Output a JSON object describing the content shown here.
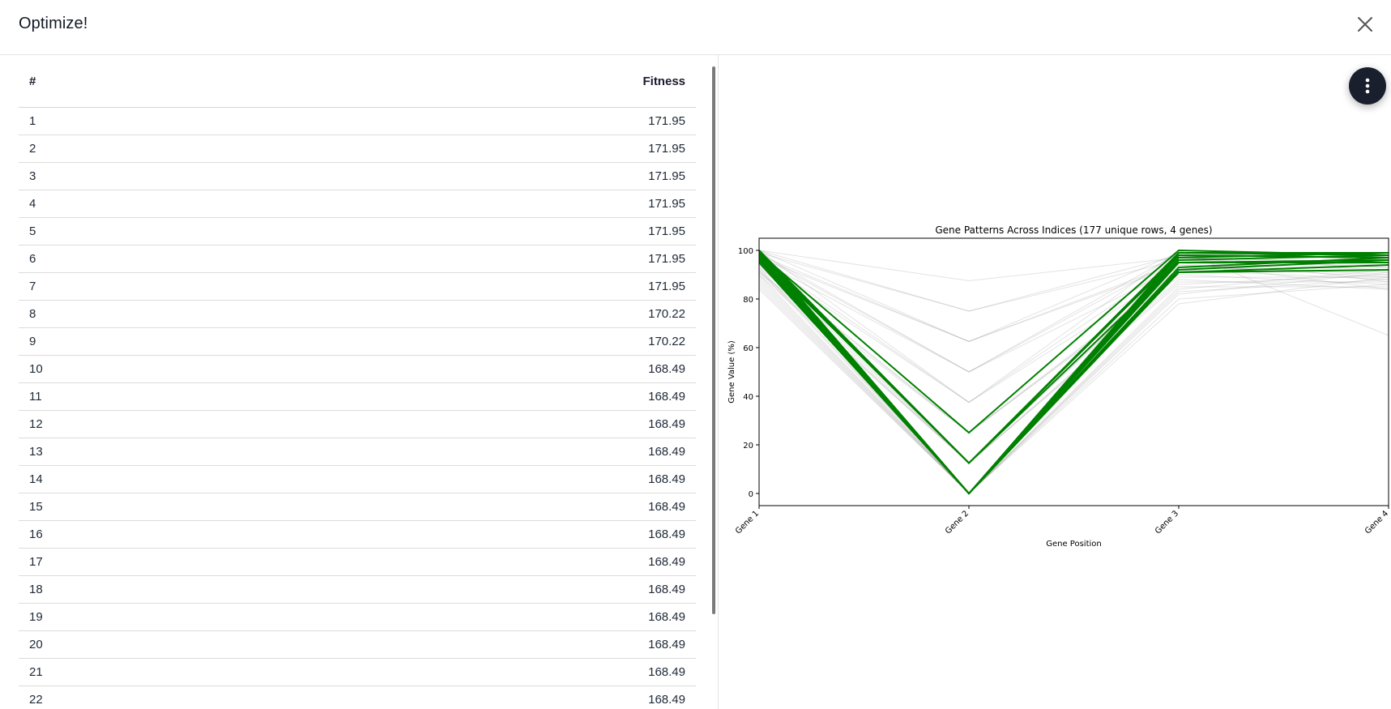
{
  "dialog": {
    "title": "Optimize!"
  },
  "table": {
    "columns": [
      "#",
      "Fitness"
    ],
    "rows": [
      [
        "1",
        "171.95"
      ],
      [
        "2",
        "171.95"
      ],
      [
        "3",
        "171.95"
      ],
      [
        "4",
        "171.95"
      ],
      [
        "5",
        "171.95"
      ],
      [
        "6",
        "171.95"
      ],
      [
        "7",
        "171.95"
      ],
      [
        "8",
        "170.22"
      ],
      [
        "9",
        "170.22"
      ],
      [
        "10",
        "168.49"
      ],
      [
        "11",
        "168.49"
      ],
      [
        "12",
        "168.49"
      ],
      [
        "13",
        "168.49"
      ],
      [
        "14",
        "168.49"
      ],
      [
        "15",
        "168.49"
      ],
      [
        "16",
        "168.49"
      ],
      [
        "17",
        "168.49"
      ],
      [
        "18",
        "168.49"
      ],
      [
        "19",
        "168.49"
      ],
      [
        "20",
        "168.49"
      ],
      [
        "21",
        "168.49"
      ],
      [
        "22",
        "168.49"
      ]
    ]
  },
  "icons": {
    "close": "close-icon",
    "menu": "more-vertical-icon"
  },
  "chart_data": {
    "type": "line",
    "title": "Gene Patterns Across Indices (177 unique rows, 4 genes)",
    "xlabel": "Gene Position",
    "ylabel": "Gene Value (%)",
    "categories": [
      "Gene 1",
      "Gene 2",
      "Gene 3",
      "Gene 4"
    ],
    "ylim": [
      -5,
      105
    ],
    "yticks": [
      0,
      20,
      40,
      60,
      80,
      100
    ],
    "grid": false,
    "highlight_color": "#008000",
    "background_color": "#808080",
    "highlight_series": [
      [
        100,
        0,
        99,
        98
      ],
      [
        99,
        0,
        98,
        97
      ],
      [
        98,
        0,
        97,
        99
      ],
      [
        97,
        0,
        96,
        98
      ],
      [
        96,
        0,
        95,
        96
      ],
      [
        100,
        12.5,
        99,
        99
      ],
      [
        99,
        12.5,
        98,
        97
      ],
      [
        98,
        12.5,
        95,
        95
      ],
      [
        97,
        0,
        93,
        97
      ],
      [
        96,
        0,
        91,
        94
      ],
      [
        95,
        0,
        92,
        96
      ],
      [
        99,
        25,
        100,
        98
      ],
      [
        100,
        0,
        91,
        92
      ]
    ],
    "background_series": [
      [
        100,
        87.5,
        97,
        95
      ],
      [
        100,
        75,
        96,
        93
      ],
      [
        99,
        75,
        98,
        97
      ],
      [
        98,
        62.5,
        95,
        92
      ],
      [
        97,
        62.5,
        94,
        90
      ],
      [
        100,
        62.5,
        99,
        96
      ],
      [
        96,
        50,
        93,
        91
      ],
      [
        98,
        50,
        97,
        95
      ],
      [
        95,
        37.5,
        92,
        88
      ],
      [
        97,
        37.5,
        96,
        94
      ],
      [
        94,
        25,
        90,
        86
      ],
      [
        93,
        25,
        89,
        89
      ],
      [
        92,
        12.5,
        88,
        84
      ],
      [
        91,
        12.5,
        87,
        87
      ],
      [
        90,
        12.5,
        86,
        90
      ],
      [
        89,
        0,
        85,
        85
      ],
      [
        88,
        0,
        84,
        92
      ],
      [
        87,
        0,
        83,
        88
      ],
      [
        86,
        0,
        82,
        91
      ],
      [
        85,
        0,
        80,
        86
      ],
      [
        84,
        0,
        78,
        89
      ],
      [
        95,
        0,
        100,
        65
      ],
      [
        93,
        0,
        95,
        84
      ],
      [
        92,
        0,
        98,
        87
      ],
      [
        90,
        0,
        97,
        93
      ],
      [
        96,
        12.5,
        94,
        89
      ],
      [
        94,
        12.5,
        93,
        95
      ],
      [
        91,
        25,
        91,
        92
      ],
      [
        100,
        37.5,
        100,
        98
      ],
      [
        99,
        50,
        99,
        97
      ]
    ]
  }
}
